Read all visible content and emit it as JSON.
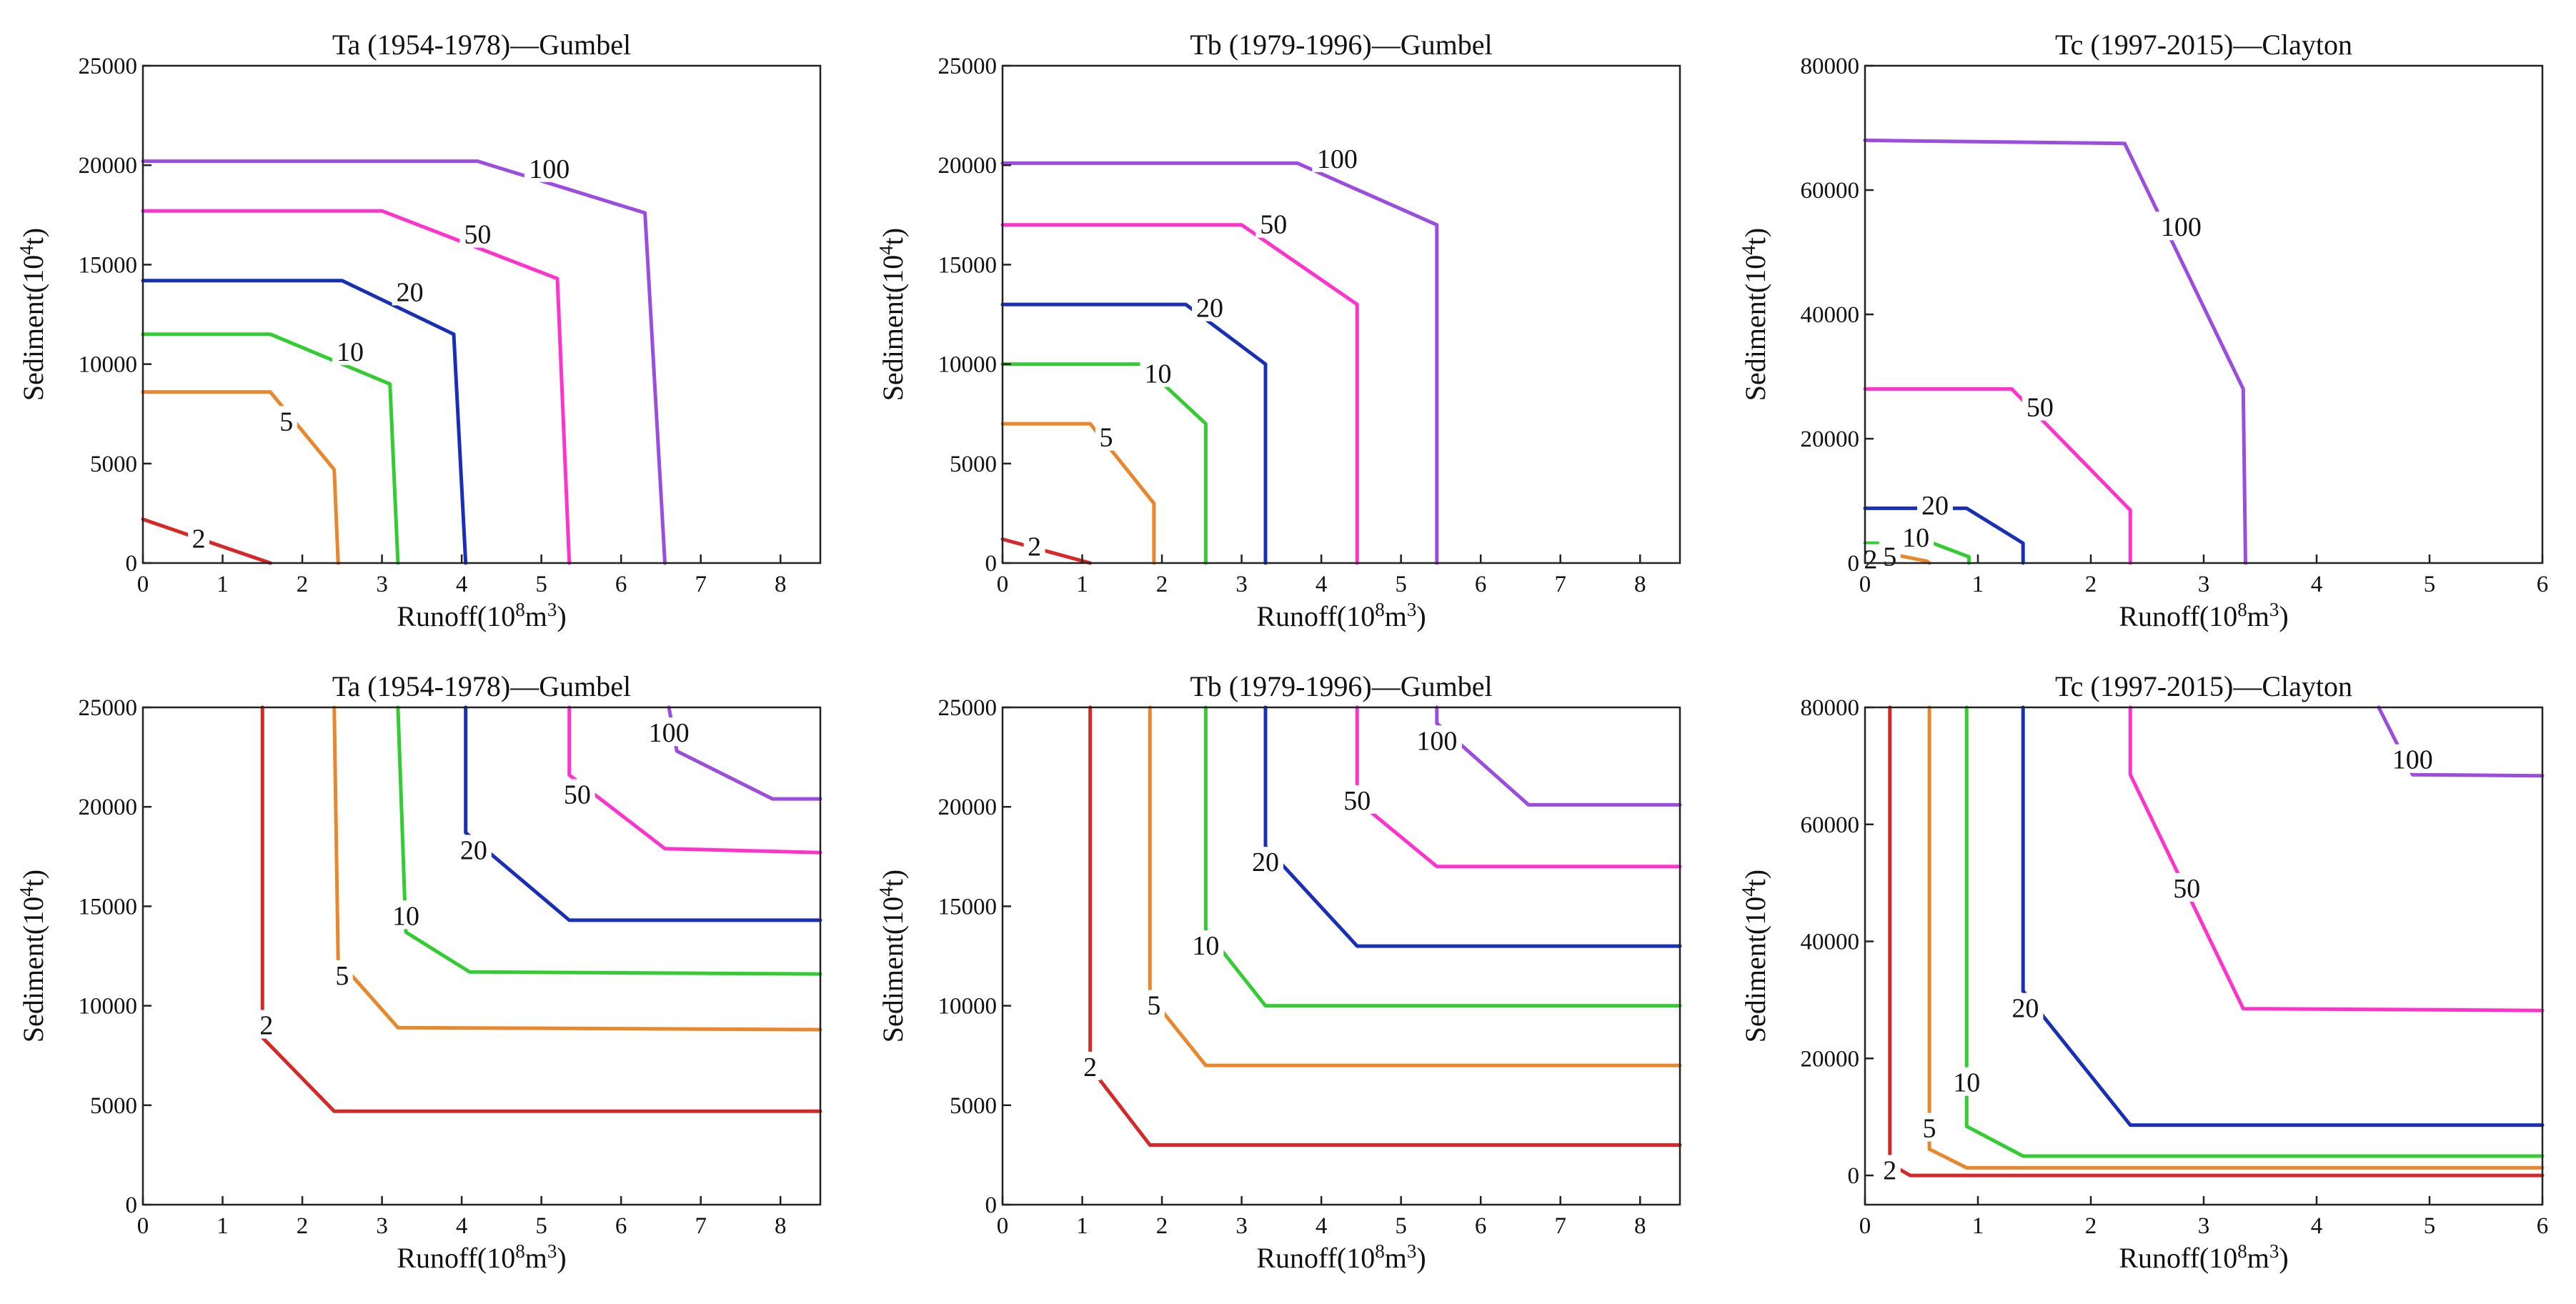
{
  "chart_data": [
    {
      "type": "line",
      "title": "Ta (1954-1978)—Gumbel",
      "xlabel_main": "Runoff(10",
      "xlabel_sup1": "8",
      "xlabel_mid": "m",
      "xlabel_sup2": "3",
      "xlabel_end": ")",
      "ylabel_main": "Sediment(10",
      "ylabel_sup": "4",
      "ylabel_end": "t)",
      "xlim": [
        0,
        8.5
      ],
      "ylim": [
        0,
        25000
      ],
      "xticks": [
        "0",
        "1",
        "2",
        "3",
        "4",
        "5",
        "6",
        "7",
        "8"
      ],
      "yticks": [
        "0",
        "5000",
        "10000",
        "15000",
        "20000",
        "25000"
      ],
      "series": [
        {
          "name": "2",
          "color": "#d62828",
          "points": [
            [
              0,
              2200
            ],
            [
              1.6,
              0
            ]
          ],
          "label_at": [
            0.7,
            1200
          ]
        },
        {
          "name": "5",
          "color": "#e8872b",
          "points": [
            [
              0,
              8600
            ],
            [
              1.6,
              8600
            ],
            [
              2.4,
              4700
            ],
            [
              2.45,
              0
            ]
          ],
          "label_at": [
            1.8,
            7100
          ]
        },
        {
          "name": "10",
          "color": "#33cc33",
          "points": [
            [
              0,
              11500
            ],
            [
              1.6,
              11500
            ],
            [
              3.1,
              9000
            ],
            [
              3.2,
              0
            ]
          ],
          "label_at": [
            2.6,
            10600
          ]
        },
        {
          "name": "20",
          "color": "#1a2fb8",
          "points": [
            [
              0,
              14200
            ],
            [
              2.5,
              14200
            ],
            [
              3.9,
              11500
            ],
            [
              4.05,
              0
            ]
          ],
          "label_at": [
            3.35,
            13600
          ]
        },
        {
          "name": "50",
          "color": "#ff33cc",
          "points": [
            [
              0,
              17700
            ],
            [
              3,
              17700
            ],
            [
              5.2,
              14300
            ],
            [
              5.35,
              0
            ]
          ],
          "label_at": [
            4.2,
            16500
          ]
        },
        {
          "name": "100",
          "color": "#9b4de0",
          "points": [
            [
              0,
              20200
            ],
            [
              4.2,
              20200
            ],
            [
              6.3,
              17600
            ],
            [
              6.55,
              0
            ]
          ],
          "label_at": [
            5.1,
            19800
          ]
        }
      ]
    },
    {
      "type": "line",
      "title": "Tb (1979-1996)—Gumbel",
      "xlabel_main": "Runoff(10",
      "xlabel_sup1": "8",
      "xlabel_mid": "m",
      "xlabel_sup2": "3",
      "xlabel_end": ")",
      "ylabel_main": "Sediment(10",
      "ylabel_sup": "4",
      "ylabel_end": "t)",
      "xlim": [
        0,
        8.5
      ],
      "ylim": [
        0,
        25000
      ],
      "xticks": [
        "0",
        "1",
        "2",
        "3",
        "4",
        "5",
        "6",
        "7",
        "8"
      ],
      "yticks": [
        "0",
        "5000",
        "10000",
        "15000",
        "20000",
        "25000"
      ],
      "series": [
        {
          "name": "2",
          "color": "#d62828",
          "points": [
            [
              0,
              1200
            ],
            [
              1.1,
              0
            ]
          ],
          "label_at": [
            0.4,
            800
          ]
        },
        {
          "name": "5",
          "color": "#e8872b",
          "points": [
            [
              0,
              7000
            ],
            [
              1.1,
              7000
            ],
            [
              1.9,
              3000
            ],
            [
              1.9,
              0
            ]
          ],
          "label_at": [
            1.3,
            6300
          ]
        },
        {
          "name": "10",
          "color": "#33cc33",
          "points": [
            [
              0,
              10000
            ],
            [
              1.75,
              10000
            ],
            [
              2.55,
              7000
            ],
            [
              2.55,
              0
            ]
          ],
          "label_at": [
            1.95,
            9500
          ]
        },
        {
          "name": "20",
          "color": "#1a2fb8",
          "points": [
            [
              0,
              13000
            ],
            [
              2.3,
              13000
            ],
            [
              3.3,
              10000
            ],
            [
              3.3,
              0
            ]
          ],
          "label_at": [
            2.6,
            12800
          ]
        },
        {
          "name": "50",
          "color": "#ff33cc",
          "points": [
            [
              0,
              17000
            ],
            [
              3,
              17000
            ],
            [
              4.45,
              13000
            ],
            [
              4.45,
              0
            ]
          ],
          "label_at": [
            3.4,
            17000
          ]
        },
        {
          "name": "100",
          "color": "#9b4de0",
          "points": [
            [
              0,
              20100
            ],
            [
              3.7,
              20100
            ],
            [
              5.45,
              17000
            ],
            [
              5.45,
              0
            ]
          ],
          "label_at": [
            4.2,
            20300
          ]
        }
      ]
    },
    {
      "type": "line",
      "title": "Tc (1997-2015)—Clayton",
      "xlabel_main": "Runoff(10",
      "xlabel_sup1": "8",
      "xlabel_mid": "m",
      "xlabel_sup2": "3",
      "xlabel_end": ")",
      "ylabel_main": "Sediment(10",
      "ylabel_sup": "4",
      "ylabel_end": "t)",
      "xlim": [
        0,
        6
      ],
      "ylim": [
        0,
        80000
      ],
      "xticks": [
        "0",
        "1",
        "2",
        "3",
        "4",
        "5",
        "6"
      ],
      "yticks": [
        "0",
        "20000",
        "40000",
        "60000",
        "80000"
      ],
      "series": [
        {
          "name": "2",
          "color": "#d62828",
          "points": [
            [
              0,
              800
            ],
            [
              0.2,
              800
            ],
            [
              0.25,
              0
            ]
          ],
          "label_at": [
            0.05,
            500
          ]
        },
        {
          "name": "5",
          "color": "#e8872b",
          "points": [
            [
              0,
              1200
            ],
            [
              0.3,
              1200
            ],
            [
              0.55,
              300
            ],
            [
              0.57,
              0
            ]
          ],
          "label_at": [
            0.22,
            1000
          ]
        },
        {
          "name": "10",
          "color": "#33cc33",
          "points": [
            [
              0,
              3200
            ],
            [
              0.6,
              3200
            ],
            [
              0.92,
              1000
            ],
            [
              0.92,
              0
            ]
          ],
          "label_at": [
            0.45,
            4000
          ]
        },
        {
          "name": "20",
          "color": "#1a2fb8",
          "points": [
            [
              0,
              8800
            ],
            [
              0.9,
              8800
            ],
            [
              1.4,
              3200
            ],
            [
              1.4,
              0
            ]
          ],
          "label_at": [
            0.62,
            9200
          ]
        },
        {
          "name": "50",
          "color": "#ff33cc",
          "points": [
            [
              0,
              28000
            ],
            [
              1.3,
              28000
            ],
            [
              2.35,
              8500
            ],
            [
              2.35,
              0
            ]
          ],
          "label_at": [
            1.55,
            25000
          ]
        },
        {
          "name": "100",
          "color": "#9b4de0",
          "points": [
            [
              0,
              68000
            ],
            [
              2.3,
              67500
            ],
            [
              3.35,
              28000
            ],
            [
              3.37,
              0
            ]
          ],
          "label_at": [
            2.8,
            54000
          ]
        }
      ]
    },
    {
      "type": "line",
      "title": "Ta (1954-1978)—Gumbel",
      "xlabel_main": "Runoff(10",
      "xlabel_sup1": "8",
      "xlabel_mid": "m",
      "xlabel_sup2": "3",
      "xlabel_end": ")",
      "ylabel_main": "Sediment(10",
      "ylabel_sup": "4",
      "ylabel_end": "t)",
      "xlim": [
        0,
        8.5
      ],
      "ylim": [
        0,
        25000
      ],
      "xticks": [
        "0",
        "1",
        "2",
        "3",
        "4",
        "5",
        "6",
        "7",
        "8"
      ],
      "yticks": [
        "0",
        "5000",
        "10000",
        "15000",
        "20000",
        "25000"
      ],
      "series": [
        {
          "name": "2",
          "color": "#d62828",
          "points": [
            [
              1.5,
              25000
            ],
            [
              1.5,
              8400
            ],
            [
              2.4,
              4700
            ],
            [
              8.5,
              4700
            ]
          ],
          "label_at": [
            1.55,
            9000
          ]
        },
        {
          "name": "5",
          "color": "#e8872b",
          "points": [
            [
              2.4,
              25000
            ],
            [
              2.45,
              12300
            ],
            [
              3.2,
              8900
            ],
            [
              8.5,
              8800
            ]
          ],
          "label_at": [
            2.5,
            11500
          ]
        },
        {
          "name": "10",
          "color": "#33cc33",
          "points": [
            [
              3.2,
              25000
            ],
            [
              3.3,
              13700
            ],
            [
              4.1,
              11700
            ],
            [
              8.5,
              11600
            ]
          ],
          "label_at": [
            3.3,
            14500
          ]
        },
        {
          "name": "20",
          "color": "#1a2fb8",
          "points": [
            [
              4.05,
              25000
            ],
            [
              4.05,
              18700
            ],
            [
              5.35,
              14300
            ],
            [
              8.5,
              14300
            ]
          ],
          "label_at": [
            4.15,
            17800
          ]
        },
        {
          "name": "50",
          "color": "#ff33cc",
          "points": [
            [
              5.35,
              25000
            ],
            [
              5.35,
              21600
            ],
            [
              6.55,
              17900
            ],
            [
              8.5,
              17700
            ]
          ],
          "label_at": [
            5.45,
            20600
          ]
        },
        {
          "name": "100",
          "color": "#9b4de0",
          "points": [
            [
              6.6,
              25000
            ],
            [
              6.7,
              22800
            ],
            [
              7.9,
              20400
            ],
            [
              8.5,
              20400
            ]
          ],
          "label_at": [
            6.6,
            23700
          ]
        }
      ]
    },
    {
      "type": "line",
      "title": "Tb (1979-1996)—Gumbel",
      "xlabel_main": "Runoff(10",
      "xlabel_sup1": "8",
      "xlabel_mid": "m",
      "xlabel_sup2": "3",
      "xlabel_end": ")",
      "ylabel_main": "Sediment(10",
      "ylabel_sup": "4",
      "ylabel_end": "t)",
      "xlim": [
        0,
        8.5
      ],
      "ylim": [
        0,
        25000
      ],
      "xticks": [
        "0",
        "1",
        "2",
        "3",
        "4",
        "5",
        "6",
        "7",
        "8"
      ],
      "yticks": [
        "0",
        "5000",
        "10000",
        "15000",
        "20000",
        "25000"
      ],
      "series": [
        {
          "name": "2",
          "color": "#d62828",
          "points": [
            [
              1.1,
              25000
            ],
            [
              1.1,
              6900
            ],
            [
              1.85,
              3000
            ],
            [
              8.5,
              3000
            ]
          ],
          "label_at": [
            1.1,
            6900
          ]
        },
        {
          "name": "5",
          "color": "#e8872b",
          "points": [
            [
              1.85,
              25000
            ],
            [
              1.85,
              10500
            ],
            [
              2.55,
              7000
            ],
            [
              8.5,
              7000
            ]
          ],
          "label_at": [
            1.9,
            10000
          ]
        },
        {
          "name": "10",
          "color": "#33cc33",
          "points": [
            [
              2.55,
              25000
            ],
            [
              2.55,
              13800
            ],
            [
              3.3,
              10000
            ],
            [
              8.5,
              10000
            ]
          ],
          "label_at": [
            2.55,
            13000
          ]
        },
        {
          "name": "20",
          "color": "#1a2fb8",
          "points": [
            [
              3.3,
              25000
            ],
            [
              3.3,
              18000
            ],
            [
              4.45,
              13000
            ],
            [
              8.5,
              13000
            ]
          ],
          "label_at": [
            3.3,
            17200
          ]
        },
        {
          "name": "50",
          "color": "#ff33cc",
          "points": [
            [
              4.45,
              25000
            ],
            [
              4.45,
              20300
            ],
            [
              5.45,
              17000
            ],
            [
              8.5,
              17000
            ]
          ],
          "label_at": [
            4.45,
            20300
          ]
        },
        {
          "name": "100",
          "color": "#9b4de0",
          "points": [
            [
              5.45,
              25000
            ],
            [
              5.45,
              24200
            ],
            [
              6.6,
              20100
            ],
            [
              8.5,
              20100
            ]
          ],
          "label_at": [
            5.45,
            23300
          ]
        }
      ]
    },
    {
      "type": "line",
      "title": "Tc (1997-2015)—Clayton",
      "xlabel_main": "Runoff(10",
      "xlabel_sup1": "8",
      "xlabel_mid": "m",
      "xlabel_sup2": "3",
      "xlabel_end": ")",
      "ylabel_main": "Sediment(10",
      "ylabel_sup": "4",
      "ylabel_end": "t)",
      "xlim": [
        0,
        6
      ],
      "ylim": [
        -5000,
        80000
      ],
      "xticks": [
        "0",
        "1",
        "2",
        "3",
        "4",
        "5",
        "6"
      ],
      "yticks": [
        "0",
        "20000",
        "40000",
        "60000",
        "80000"
      ],
      "series": [
        {
          "name": "2",
          "color": "#d62828",
          "points": [
            [
              0.22,
              80000
            ],
            [
              0.22,
              2000
            ],
            [
              0.4,
              0
            ],
            [
              6,
              0
            ]
          ],
          "label_at": [
            0.22,
            800
          ]
        },
        {
          "name": "5",
          "color": "#e8872b",
          "points": [
            [
              0.57,
              80000
            ],
            [
              0.57,
              4500
            ],
            [
              0.9,
              1300
            ],
            [
              6,
              1300
            ]
          ],
          "label_at": [
            0.57,
            8000
          ]
        },
        {
          "name": "10",
          "color": "#33cc33",
          "points": [
            [
              0.9,
              80000
            ],
            [
              0.9,
              8400
            ],
            [
              1.4,
              3300
            ],
            [
              6,
              3300
            ]
          ],
          "label_at": [
            0.9,
            15800
          ]
        },
        {
          "name": "20",
          "color": "#1a2fb8",
          "points": [
            [
              1.4,
              80000
            ],
            [
              1.4,
              31500
            ],
            [
              2.35,
              8600
            ],
            [
              6,
              8600
            ]
          ],
          "label_at": [
            1.42,
            28500
          ]
        },
        {
          "name": "50",
          "color": "#ff33cc",
          "points": [
            [
              2.35,
              80000
            ],
            [
              2.35,
              68500
            ],
            [
              3.35,
              28500
            ],
            [
              6,
              28200
            ]
          ],
          "label_at": [
            2.85,
            49000
          ]
        },
        {
          "name": "100",
          "color": "#9b4de0",
          "points": [
            [
              4.55,
              80000
            ],
            [
              4.85,
              68500
            ],
            [
              6,
              68300
            ]
          ],
          "label_at": [
            4.85,
            71000
          ]
        }
      ]
    }
  ]
}
